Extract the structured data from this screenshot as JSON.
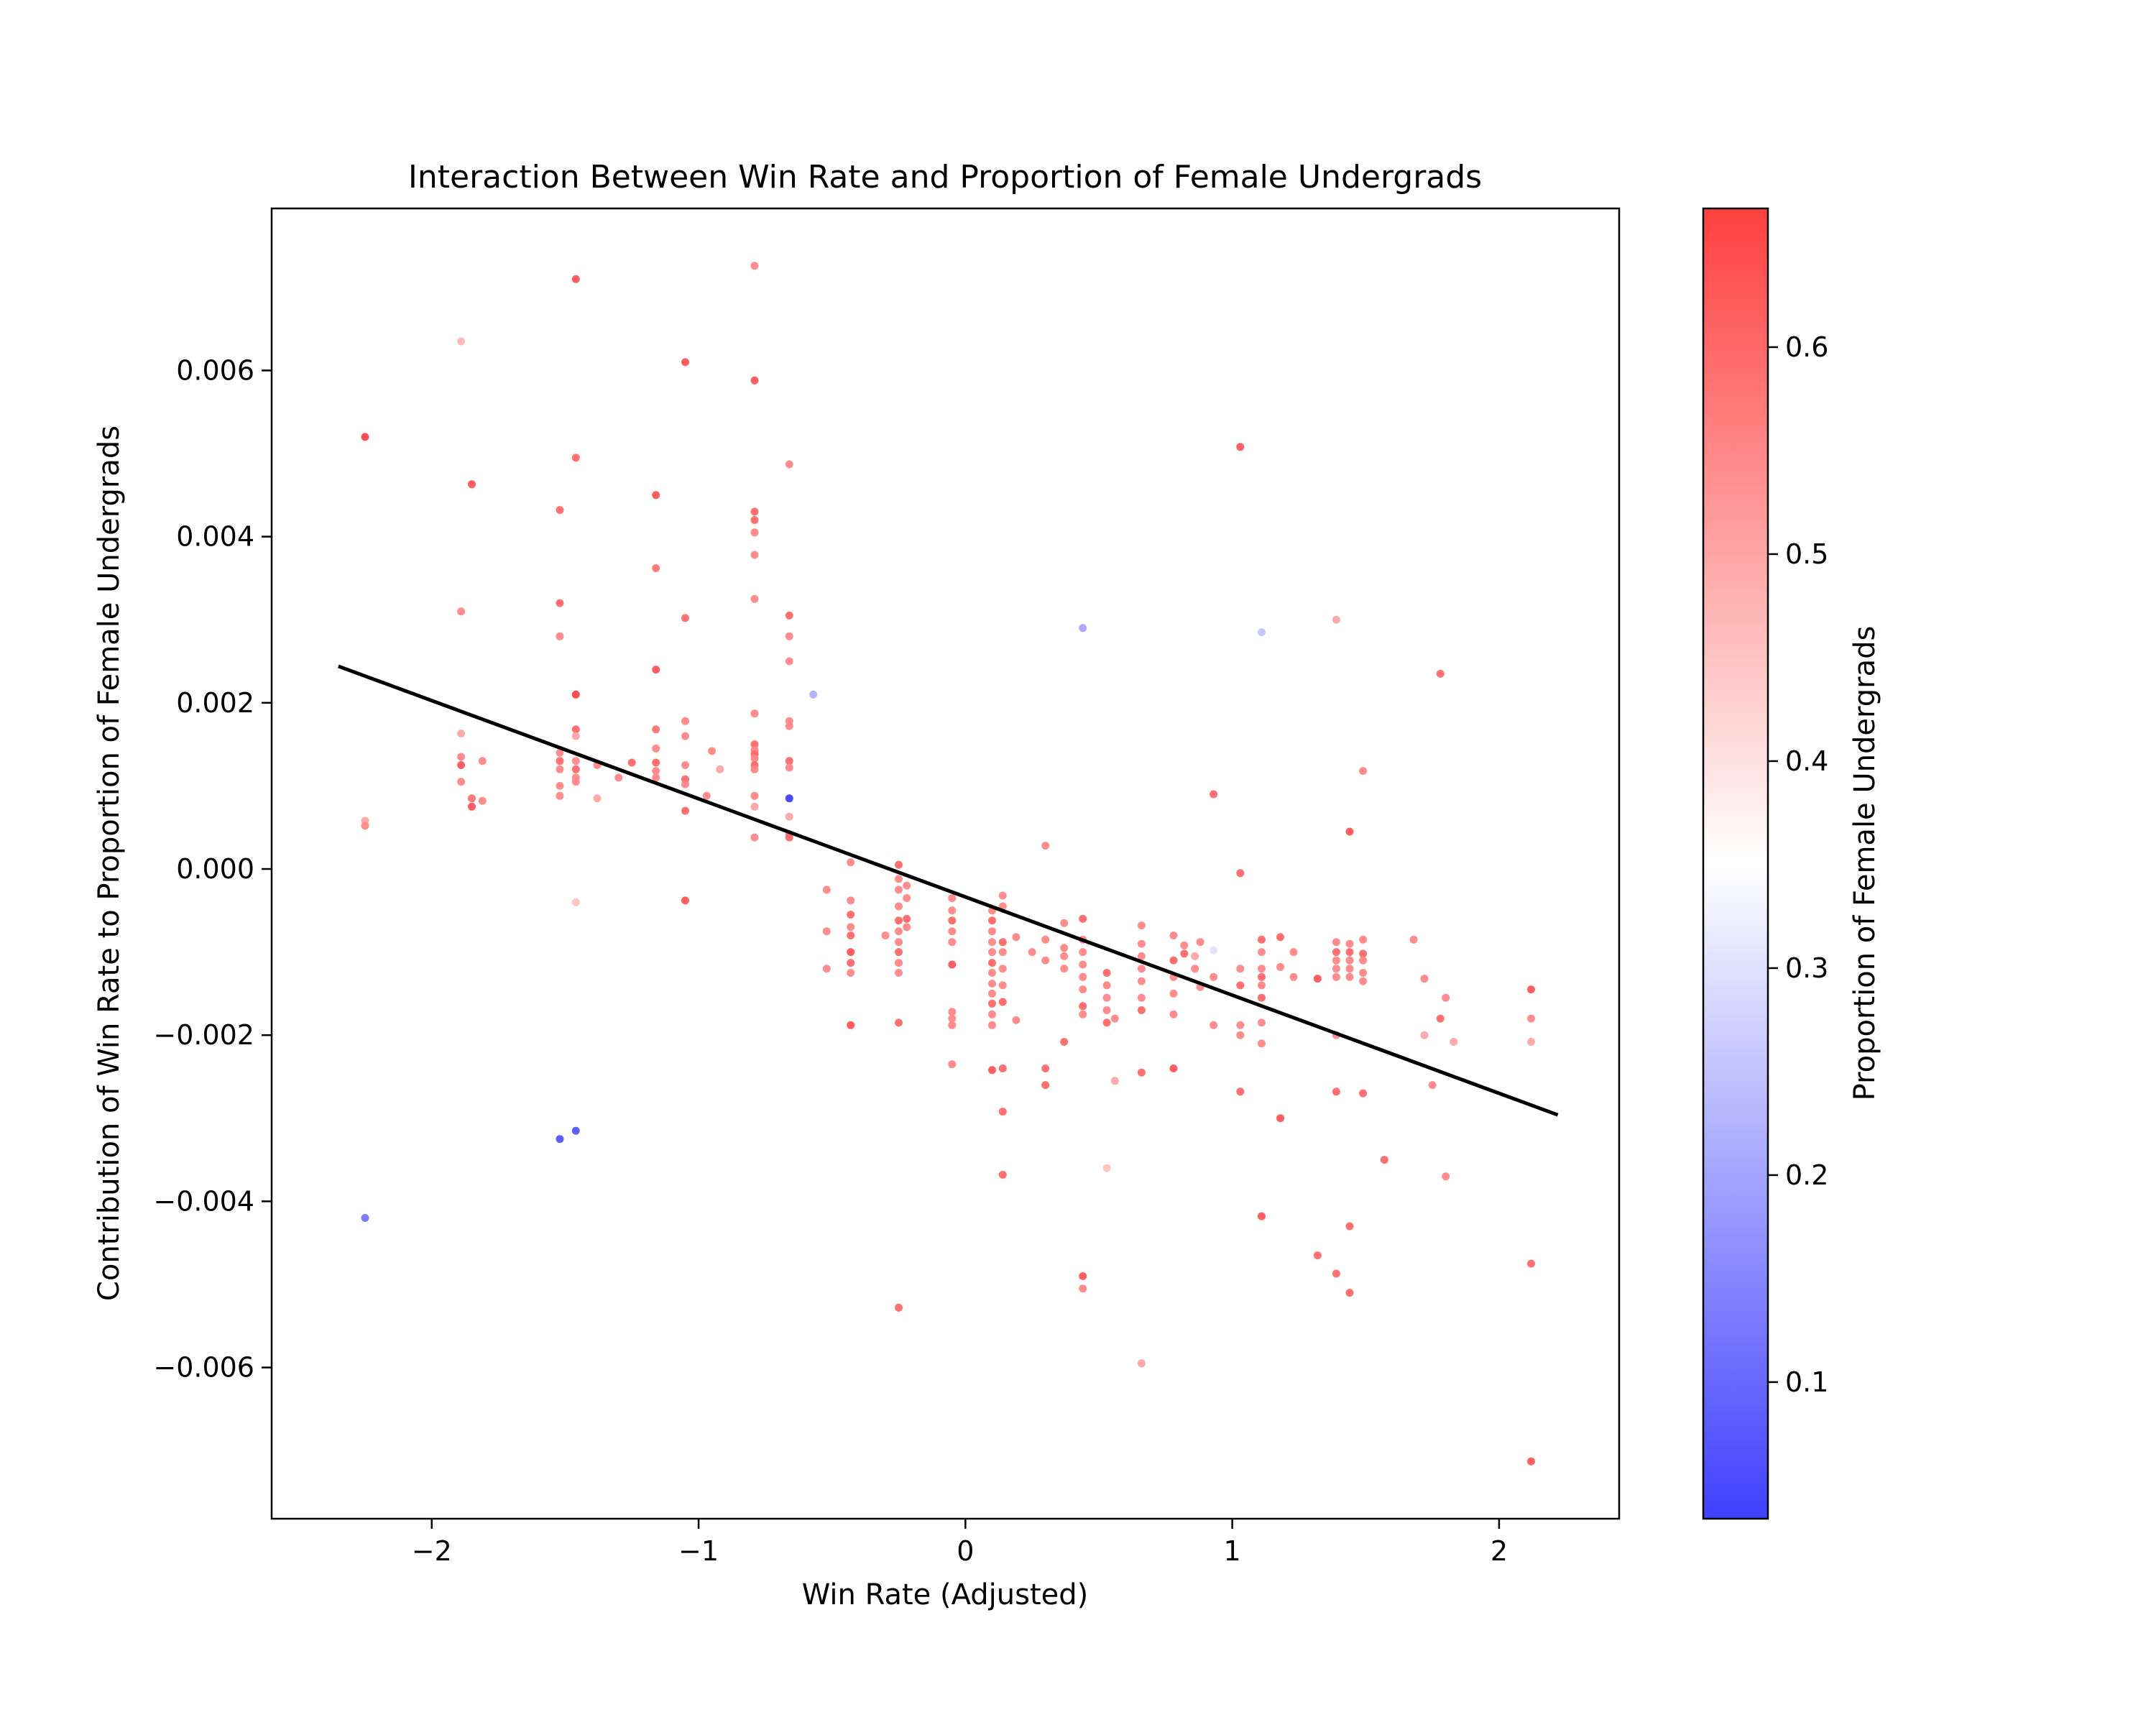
{
  "chart_data": {
    "type": "scatter",
    "title": "Interaction Between Win Rate and Proportion of Female Undergrads",
    "xlabel": "Win Rate (Adjusted)",
    "ylabel": "Contribution of Win Rate to Proportion of Female Undergrads",
    "xlim": [
      -2.6,
      2.45
    ],
    "ylim": [
      -0.00782,
      0.00795
    ],
    "xticks": [
      {
        "value": -2,
        "label": "−2"
      },
      {
        "value": -1,
        "label": "−1"
      },
      {
        "value": 0,
        "label": "0"
      },
      {
        "value": 1,
        "label": "1"
      },
      {
        "value": 2,
        "label": "2"
      }
    ],
    "yticks": [
      {
        "value": -0.006,
        "label": "−0.006"
      },
      {
        "value": -0.004,
        "label": "−0.004"
      },
      {
        "value": -0.002,
        "label": "−0.002"
      },
      {
        "value": 0.0,
        "label": "0.000"
      },
      {
        "value": 0.002,
        "label": "0.002"
      },
      {
        "value": 0.004,
        "label": "0.004"
      },
      {
        "value": 0.006,
        "label": "0.006"
      }
    ],
    "trendline": {
      "x": [
        -2.35,
        2.22
      ],
      "y": [
        0.00244,
        -0.00296
      ],
      "color": "#000000"
    },
    "colorbar": {
      "label": "Proportion of Female Undergrads",
      "range": [
        0.034,
        0.667
      ],
      "colormap": "bwr",
      "colors": {
        "low": "#4040ff",
        "mid": "#ffffff",
        "high": "#ff4040"
      },
      "ticks": [
        {
          "value": 0.1,
          "label": "0.1"
        },
        {
          "value": 0.2,
          "label": "0.2"
        },
        {
          "value": 0.3,
          "label": "0.3"
        },
        {
          "value": 0.4,
          "label": "0.4"
        },
        {
          "value": 0.5,
          "label": "0.5"
        },
        {
          "value": 0.6,
          "label": "0.6"
        }
      ]
    },
    "grid": false,
    "points": [
      [
        -2.25,
        0.0052,
        0.66
      ],
      [
        -2.25,
        0.00058,
        0.5
      ],
      [
        -2.25,
        0.00052,
        0.55
      ],
      [
        -2.25,
        -0.0042,
        0.12
      ],
      [
        -1.89,
        0.00635,
        0.47
      ],
      [
        -1.89,
        0.0031,
        0.55
      ],
      [
        -1.89,
        0.00163,
        0.5
      ],
      [
        -1.89,
        0.00135,
        0.55
      ],
      [
        -1.89,
        0.00125,
        0.63
      ],
      [
        -1.89,
        0.00105,
        0.55
      ],
      [
        -1.85,
        0.00463,
        0.63
      ],
      [
        -1.85,
        0.00085,
        0.58
      ],
      [
        -1.85,
        0.00075,
        0.63
      ],
      [
        -1.81,
        0.0013,
        0.55
      ],
      [
        -1.81,
        0.00082,
        0.55
      ],
      [
        -1.52,
        0.00432,
        0.6
      ],
      [
        -1.52,
        0.0032,
        0.6
      ],
      [
        -1.52,
        0.0028,
        0.55
      ],
      [
        -1.52,
        0.0014,
        0.55
      ],
      [
        -1.52,
        0.0013,
        0.6
      ],
      [
        -1.52,
        0.0012,
        0.55
      ],
      [
        -1.52,
        0.001,
        0.55
      ],
      [
        -1.52,
        0.00088,
        0.55
      ],
      [
        -1.52,
        -0.00325,
        0.07
      ],
      [
        -1.46,
        0.0071,
        0.63
      ],
      [
        -1.46,
        0.00495,
        0.6
      ],
      [
        -1.46,
        0.0021,
        0.66
      ],
      [
        -1.46,
        0.00168,
        0.6
      ],
      [
        -1.46,
        0.0016,
        0.5
      ],
      [
        -1.46,
        0.0013,
        0.55
      ],
      [
        -1.46,
        0.0012,
        0.6
      ],
      [
        -1.46,
        0.0011,
        0.55
      ],
      [
        -1.46,
        0.00105,
        0.55
      ],
      [
        -1.46,
        -0.0004,
        0.45
      ],
      [
        -1.46,
        -0.00315,
        0.07
      ],
      [
        -1.38,
        0.00125,
        0.55
      ],
      [
        -1.38,
        0.00085,
        0.5
      ],
      [
        -1.3,
        0.0011,
        0.55
      ],
      [
        -1.25,
        0.00128,
        0.6
      ],
      [
        -1.16,
        0.0045,
        0.63
      ],
      [
        -1.16,
        0.00362,
        0.58
      ],
      [
        -1.16,
        0.0024,
        0.63
      ],
      [
        -1.16,
        0.00168,
        0.58
      ],
      [
        -1.16,
        0.00145,
        0.55
      ],
      [
        -1.16,
        0.00128,
        0.6
      ],
      [
        -1.16,
        0.00118,
        0.55
      ],
      [
        -1.16,
        0.0011,
        0.55
      ],
      [
        -1.05,
        0.0061,
        0.63
      ],
      [
        -1.05,
        0.00302,
        0.6
      ],
      [
        -1.05,
        0.00178,
        0.55
      ],
      [
        -1.05,
        0.0016,
        0.55
      ],
      [
        -1.05,
        0.00125,
        0.55
      ],
      [
        -1.05,
        0.00108,
        0.6
      ],
      [
        -1.05,
        0.00102,
        0.55
      ],
      [
        -1.05,
        0.0007,
        0.6
      ],
      [
        -1.05,
        -0.00038,
        0.63
      ],
      [
        -0.97,
        0.00088,
        0.55
      ],
      [
        -0.95,
        0.00142,
        0.55
      ],
      [
        -0.92,
        0.0012,
        0.5
      ],
      [
        -0.79,
        0.00726,
        0.55
      ],
      [
        -0.79,
        0.00588,
        0.63
      ],
      [
        -0.79,
        0.0043,
        0.6
      ],
      [
        -0.79,
        0.0042,
        0.6
      ],
      [
        -0.79,
        0.00405,
        0.55
      ],
      [
        -0.79,
        0.00378,
        0.55
      ],
      [
        -0.79,
        0.00325,
        0.55
      ],
      [
        -0.79,
        0.00187,
        0.55
      ],
      [
        -0.79,
        0.0015,
        0.6
      ],
      [
        -0.79,
        0.00143,
        0.55
      ],
      [
        -0.79,
        0.00138,
        0.6
      ],
      [
        -0.79,
        0.00133,
        0.55
      ],
      [
        -0.79,
        0.00125,
        0.6
      ],
      [
        -0.79,
        0.0012,
        0.55
      ],
      [
        -0.79,
        0.00088,
        0.55
      ],
      [
        -0.79,
        0.00075,
        0.5
      ],
      [
        -0.79,
        0.00038,
        0.55
      ],
      [
        -0.66,
        0.00487,
        0.55
      ],
      [
        -0.66,
        0.00305,
        0.6
      ],
      [
        -0.66,
        0.0028,
        0.55
      ],
      [
        -0.66,
        0.0025,
        0.55
      ],
      [
        -0.66,
        0.00178,
        0.55
      ],
      [
        -0.66,
        0.00172,
        0.55
      ],
      [
        -0.66,
        0.0013,
        0.6
      ],
      [
        -0.66,
        0.00122,
        0.55
      ],
      [
        -0.66,
        0.00085,
        0.034
      ],
      [
        -0.66,
        0.00063,
        0.5
      ],
      [
        -0.66,
        0.00042,
        0.55
      ],
      [
        -0.66,
        0.00038,
        0.6
      ],
      [
        -0.57,
        0.0021,
        0.22
      ],
      [
        -0.52,
        -0.00025,
        0.55
      ],
      [
        -0.52,
        -0.00075,
        0.55
      ],
      [
        -0.52,
        -0.0012,
        0.55
      ],
      [
        -0.43,
        8e-05,
        0.55
      ],
      [
        -0.43,
        -0.00038,
        0.55
      ],
      [
        -0.43,
        -0.00055,
        0.6
      ],
      [
        -0.43,
        -0.0007,
        0.55
      ],
      [
        -0.43,
        -0.0008,
        0.6
      ],
      [
        -0.43,
        -0.001,
        0.63
      ],
      [
        -0.43,
        -0.00113,
        0.6
      ],
      [
        -0.43,
        -0.00125,
        0.55
      ],
      [
        -0.43,
        -0.00188,
        0.63
      ],
      [
        -0.3,
        -0.0008,
        0.55
      ],
      [
        -0.25,
        5e-05,
        0.6
      ],
      [
        -0.25,
        -0.00012,
        0.55
      ],
      [
        -0.25,
        -0.00025,
        0.55
      ],
      [
        -0.25,
        -0.00045,
        0.55
      ],
      [
        -0.25,
        -0.00062,
        0.6
      ],
      [
        -0.25,
        -0.00075,
        0.55
      ],
      [
        -0.25,
        -0.00088,
        0.55
      ],
      [
        -0.25,
        -0.001,
        0.6
      ],
      [
        -0.25,
        -0.00113,
        0.55
      ],
      [
        -0.25,
        -0.00125,
        0.55
      ],
      [
        -0.25,
        -0.00185,
        0.6
      ],
      [
        -0.25,
        -0.00528,
        0.6
      ],
      [
        -0.22,
        -0.0002,
        0.55
      ],
      [
        -0.22,
        -0.00035,
        0.55
      ],
      [
        -0.22,
        -0.0006,
        0.6
      ],
      [
        -0.22,
        -0.0007,
        0.55
      ],
      [
        -0.05,
        -0.00035,
        0.55
      ],
      [
        -0.05,
        -0.0005,
        0.55
      ],
      [
        -0.05,
        -0.00062,
        0.6
      ],
      [
        -0.05,
        -0.00075,
        0.55
      ],
      [
        -0.05,
        -0.00088,
        0.55
      ],
      [
        -0.05,
        -0.00115,
        0.63
      ],
      [
        -0.05,
        -0.00172,
        0.55
      ],
      [
        -0.05,
        -0.0018,
        0.55
      ],
      [
        -0.05,
        -0.00188,
        0.55
      ],
      [
        -0.05,
        -0.00235,
        0.55
      ],
      [
        0.1,
        -0.0005,
        0.55
      ],
      [
        0.1,
        -0.00062,
        0.6
      ],
      [
        0.1,
        -0.00075,
        0.55
      ],
      [
        0.1,
        -0.00088,
        0.55
      ],
      [
        0.1,
        -0.001,
        0.55
      ],
      [
        0.1,
        -0.00113,
        0.6
      ],
      [
        0.1,
        -0.00125,
        0.55
      ],
      [
        0.1,
        -0.00138,
        0.55
      ],
      [
        0.1,
        -0.0015,
        0.55
      ],
      [
        0.1,
        -0.00162,
        0.6
      ],
      [
        0.1,
        -0.00175,
        0.55
      ],
      [
        0.1,
        -0.00188,
        0.55
      ],
      [
        0.1,
        -0.00242,
        0.63
      ],
      [
        0.14,
        -0.00032,
        0.55
      ],
      [
        0.14,
        -0.00045,
        0.55
      ],
      [
        0.14,
        -0.00088,
        0.6
      ],
      [
        0.14,
        -0.001,
        0.55
      ],
      [
        0.14,
        -0.0012,
        0.55
      ],
      [
        0.14,
        -0.0014,
        0.55
      ],
      [
        0.14,
        -0.0016,
        0.6
      ],
      [
        0.14,
        -0.0024,
        0.6
      ],
      [
        0.14,
        -0.00292,
        0.6
      ],
      [
        0.14,
        -0.00368,
        0.6
      ],
      [
        0.19,
        -0.00082,
        0.55
      ],
      [
        0.19,
        -0.00182,
        0.55
      ],
      [
        0.25,
        -0.001,
        0.55
      ],
      [
        0.3,
        0.00028,
        0.55
      ],
      [
        0.3,
        -0.00085,
        0.55
      ],
      [
        0.3,
        -0.0011,
        0.55
      ],
      [
        0.3,
        -0.0024,
        0.6
      ],
      [
        0.3,
        -0.0026,
        0.6
      ],
      [
        0.37,
        -0.00065,
        0.55
      ],
      [
        0.37,
        -0.00095,
        0.55
      ],
      [
        0.37,
        -0.00105,
        0.55
      ],
      [
        0.37,
        -0.0012,
        0.55
      ],
      [
        0.37,
        -0.00208,
        0.6
      ],
      [
        0.44,
        -0.0006,
        0.6
      ],
      [
        0.44,
        -0.00085,
        0.55
      ],
      [
        0.44,
        -0.001,
        0.55
      ],
      [
        0.44,
        -0.00115,
        0.55
      ],
      [
        0.44,
        -0.0013,
        0.55
      ],
      [
        0.44,
        -0.00145,
        0.55
      ],
      [
        0.44,
        -0.00165,
        0.6
      ],
      [
        0.44,
        -0.00175,
        0.55
      ],
      [
        0.44,
        0.0029,
        0.2
      ],
      [
        0.44,
        -0.0049,
        0.63
      ],
      [
        0.44,
        -0.00505,
        0.55
      ],
      [
        0.53,
        -0.00125,
        0.6
      ],
      [
        0.53,
        -0.0014,
        0.55
      ],
      [
        0.53,
        -0.00155,
        0.55
      ],
      [
        0.53,
        -0.0017,
        0.55
      ],
      [
        0.53,
        -0.00185,
        0.6
      ],
      [
        0.53,
        -0.0036,
        0.45
      ],
      [
        0.56,
        -0.00255,
        0.5
      ],
      [
        0.56,
        -0.0018,
        0.55
      ],
      [
        0.66,
        -0.00068,
        0.55
      ],
      [
        0.66,
        -0.0009,
        0.55
      ],
      [
        0.66,
        -0.00105,
        0.55
      ],
      [
        0.66,
        -0.0012,
        0.55
      ],
      [
        0.66,
        -0.00135,
        0.55
      ],
      [
        0.66,
        -0.00155,
        0.55
      ],
      [
        0.66,
        -0.0017,
        0.6
      ],
      [
        0.66,
        -0.00245,
        0.6
      ],
      [
        0.66,
        -0.00595,
        0.5
      ],
      [
        0.78,
        -0.0008,
        0.55
      ],
      [
        0.78,
        -0.0011,
        0.6
      ],
      [
        0.78,
        -0.0013,
        0.55
      ],
      [
        0.78,
        -0.0015,
        0.55
      ],
      [
        0.78,
        -0.00175,
        0.55
      ],
      [
        0.78,
        -0.0024,
        0.63
      ],
      [
        0.82,
        -0.00092,
        0.55
      ],
      [
        0.82,
        -0.00102,
        0.6
      ],
      [
        0.86,
        -0.00105,
        0.5
      ],
      [
        0.86,
        -0.0012,
        0.55
      ],
      [
        0.88,
        -0.00088,
        0.55
      ],
      [
        0.88,
        -0.00142,
        0.55
      ],
      [
        0.93,
        0.0009,
        0.6
      ],
      [
        0.93,
        -0.00098,
        0.3
      ],
      [
        0.93,
        -0.0013,
        0.55
      ],
      [
        0.93,
        -0.00188,
        0.55
      ],
      [
        1.03,
        0.00508,
        0.63
      ],
      [
        1.03,
        -5e-05,
        0.6
      ],
      [
        1.03,
        -0.0012,
        0.55
      ],
      [
        1.03,
        -0.0014,
        0.6
      ],
      [
        1.03,
        -0.00188,
        0.55
      ],
      [
        1.03,
        -0.002,
        0.55
      ],
      [
        1.03,
        -0.00268,
        0.6
      ],
      [
        1.11,
        0.00285,
        0.25
      ],
      [
        1.11,
        -0.00085,
        0.6
      ],
      [
        1.11,
        -0.001,
        0.55
      ],
      [
        1.11,
        -0.0012,
        0.55
      ],
      [
        1.11,
        -0.0013,
        0.6
      ],
      [
        1.11,
        -0.0014,
        0.55
      ],
      [
        1.11,
        -0.00155,
        0.6
      ],
      [
        1.11,
        -0.00185,
        0.55
      ],
      [
        1.11,
        -0.0021,
        0.55
      ],
      [
        1.11,
        -0.00418,
        0.63
      ],
      [
        1.18,
        -0.00082,
        0.6
      ],
      [
        1.18,
        -0.00118,
        0.55
      ],
      [
        1.18,
        -0.003,
        0.63
      ],
      [
        1.23,
        -0.001,
        0.55
      ],
      [
        1.23,
        -0.0013,
        0.55
      ],
      [
        1.32,
        -0.00132,
        0.63
      ],
      [
        1.32,
        -0.00465,
        0.6
      ],
      [
        1.39,
        0.003,
        0.5
      ],
      [
        1.39,
        -0.00088,
        0.55
      ],
      [
        1.39,
        -0.001,
        0.6
      ],
      [
        1.39,
        -0.0011,
        0.55
      ],
      [
        1.39,
        -0.0012,
        0.55
      ],
      [
        1.39,
        -0.0013,
        0.55
      ],
      [
        1.39,
        -0.002,
        0.55
      ],
      [
        1.39,
        -0.00268,
        0.6
      ],
      [
        1.39,
        -0.00487,
        0.6
      ],
      [
        1.44,
        0.00045,
        0.63
      ],
      [
        1.44,
        -0.0009,
        0.55
      ],
      [
        1.44,
        -0.001,
        0.6
      ],
      [
        1.44,
        -0.0011,
        0.55
      ],
      [
        1.44,
        -0.0012,
        0.55
      ],
      [
        1.44,
        -0.0013,
        0.55
      ],
      [
        1.44,
        -0.0043,
        0.6
      ],
      [
        1.44,
        -0.0051,
        0.6
      ],
      [
        1.49,
        0.00118,
        0.55
      ],
      [
        1.49,
        -0.00085,
        0.55
      ],
      [
        1.49,
        -0.00102,
        0.6
      ],
      [
        1.49,
        -0.0011,
        0.55
      ],
      [
        1.49,
        -0.00125,
        0.55
      ],
      [
        1.49,
        -0.00135,
        0.55
      ],
      [
        1.49,
        -0.0027,
        0.6
      ],
      [
        1.57,
        -0.0035,
        0.6
      ],
      [
        1.68,
        -0.00085,
        0.55
      ],
      [
        1.72,
        -0.00132,
        0.55
      ],
      [
        1.72,
        -0.002,
        0.5
      ],
      [
        1.75,
        -0.0026,
        0.55
      ],
      [
        1.78,
        0.00235,
        0.6
      ],
      [
        1.78,
        -0.0018,
        0.6
      ],
      [
        1.8,
        -0.00155,
        0.55
      ],
      [
        1.8,
        -0.0037,
        0.55
      ],
      [
        1.83,
        -0.00208,
        0.5
      ],
      [
        2.12,
        -0.00145,
        0.63
      ],
      [
        2.12,
        -0.0018,
        0.55
      ],
      [
        2.12,
        -0.00208,
        0.5
      ],
      [
        2.12,
        -0.00475,
        0.6
      ],
      [
        2.12,
        -0.00713,
        0.63
      ]
    ]
  }
}
